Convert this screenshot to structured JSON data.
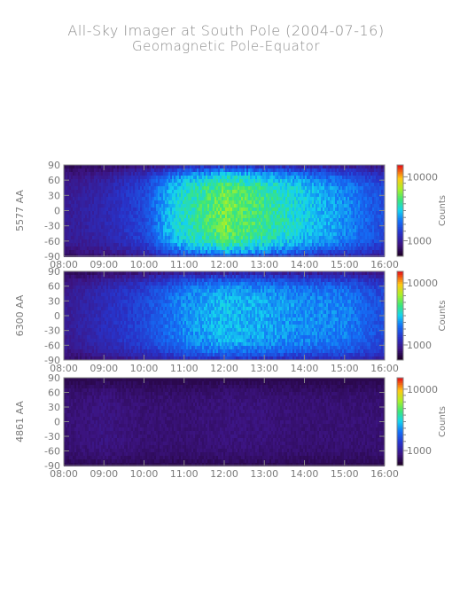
{
  "title": "All-Sky Imager at South Pole (2004-07-16)",
  "subtitle": "Geomagnetic Pole-Equator",
  "chart_data": [
    {
      "type": "heatmap",
      "ylabel": "5577 AA",
      "x_ticks": [
        "08:00",
        "09:00",
        "10:00",
        "11:00",
        "12:00",
        "13:00",
        "14:00",
        "15:00",
        "16:00"
      ],
      "xlim": [
        "08:00",
        "16:00"
      ],
      "y_ticks": [
        90,
        60,
        30,
        0,
        -30,
        -60,
        -90
      ],
      "ylim": [
        -90,
        90
      ],
      "colorbar": {
        "label": "Counts",
        "ticks": [
          "10000",
          "1000"
        ],
        "scale": "log",
        "colormap": "rainbow"
      },
      "intensity_profile": {
        "times": [
          "08:00",
          "09:00",
          "10:00",
          "10:30",
          "11:00",
          "12:00",
          "13:00",
          "14:00",
          "15:00",
          "16:00"
        ],
        "levels": [
          0.15,
          0.2,
          0.3,
          0.45,
          0.55,
          0.68,
          0.6,
          0.5,
          0.42,
          0.3
        ]
      }
    },
    {
      "type": "heatmap",
      "ylabel": "6300 AA",
      "x_ticks": [
        "08:00",
        "09:00",
        "10:00",
        "11:00",
        "12:00",
        "13:00",
        "14:00",
        "15:00",
        "16:00"
      ],
      "xlim": [
        "08:00",
        "16:00"
      ],
      "y_ticks": [
        90,
        60,
        30,
        0,
        -30,
        -60,
        -90
      ],
      "ylim": [
        -90,
        90
      ],
      "colorbar": {
        "label": "Counts",
        "ticks": [
          "10000",
          "1000"
        ],
        "scale": "log",
        "colormap": "rainbow"
      },
      "intensity_profile": {
        "times": [
          "08:00",
          "09:00",
          "10:00",
          "11:00",
          "12:00",
          "13:00",
          "14:00",
          "15:00",
          "16:00"
        ],
        "levels": [
          0.15,
          0.22,
          0.3,
          0.42,
          0.48,
          0.45,
          0.42,
          0.4,
          0.3
        ]
      }
    },
    {
      "type": "heatmap",
      "ylabel": "4861 AA",
      "x_ticks": [
        "08:00",
        "09:00",
        "10:00",
        "11:00",
        "12:00",
        "13:00",
        "14:00",
        "15:00",
        "16:00"
      ],
      "xlim": [
        "08:00",
        "16:00"
      ],
      "y_ticks": [
        90,
        60,
        30,
        0,
        -30,
        -60,
        -90
      ],
      "ylim": [
        -90,
        90
      ],
      "colorbar": {
        "label": "Counts",
        "ticks": [
          "10000",
          "1000"
        ],
        "scale": "log",
        "colormap": "rainbow"
      },
      "intensity_profile": {
        "times": [
          "08:00",
          "09:00",
          "10:00",
          "11:00",
          "12:00",
          "13:00",
          "14:00",
          "15:00",
          "16:00"
        ],
        "levels": [
          0.1,
          0.12,
          0.1,
          0.1,
          0.11,
          0.11,
          0.1,
          0.1,
          0.1
        ]
      }
    }
  ]
}
